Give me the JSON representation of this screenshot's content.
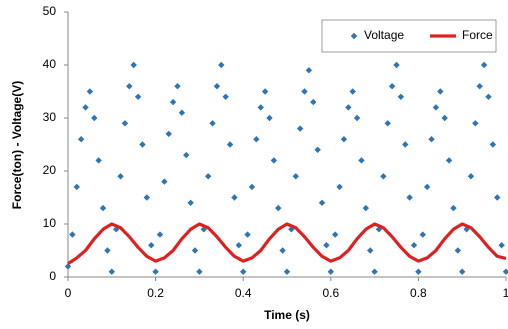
{
  "chart_data": {
    "type": "scatter",
    "xlabel": "Time (s)",
    "ylabel": "Force(ton) - Voltage(V)",
    "xlim": [
      0,
      1
    ],
    "xticks": [
      0,
      0.2,
      0.4,
      0.6,
      0.8,
      1
    ],
    "ylim": [
      0,
      50
    ],
    "yticks": [
      0,
      10,
      20,
      30,
      40,
      50
    ],
    "grid": false,
    "legend": "upper right",
    "series": [
      {
        "name": "Voltage",
        "color": "#2e75b6",
        "marker": "diamond",
        "x": [
          0,
          0.01,
          0.02,
          0.03,
          0.04,
          0.05,
          0.06,
          0.07,
          0.08,
          0.09,
          0.1,
          0.11,
          0.12,
          0.13,
          0.14,
          0.15,
          0.16,
          0.17,
          0.18,
          0.19,
          0.2,
          0.21,
          0.22,
          0.23,
          0.24,
          0.25,
          0.26,
          0.27,
          0.28,
          0.29,
          0.3,
          0.31,
          0.32,
          0.33,
          0.34,
          0.35,
          0.36,
          0.37,
          0.38,
          0.39,
          0.4,
          0.41,
          0.42,
          0.43,
          0.44,
          0.45,
          0.46,
          0.47,
          0.48,
          0.49,
          0.5,
          0.51,
          0.52,
          0.53,
          0.54,
          0.55,
          0.56,
          0.57,
          0.58,
          0.59,
          0.6,
          0.61,
          0.62,
          0.63,
          0.64,
          0.65,
          0.66,
          0.67,
          0.68,
          0.69,
          0.7,
          0.71,
          0.72,
          0.73,
          0.74,
          0.75,
          0.76,
          0.77,
          0.78,
          0.79,
          0.8,
          0.81,
          0.82,
          0.83,
          0.84,
          0.85,
          0.86,
          0.87,
          0.88,
          0.89,
          0.9,
          0.91,
          0.92,
          0.93,
          0.94,
          0.95,
          0.96,
          0.97,
          0.98,
          0.99,
          1
        ],
        "values": [
          2,
          8,
          17,
          26,
          32,
          35,
          30,
          22,
          13,
          5,
          1,
          9,
          19,
          29,
          36,
          40,
          34,
          25,
          15,
          6,
          1,
          8,
          18,
          27,
          33,
          36,
          31,
          23,
          14,
          5,
          1,
          9,
          19,
          29,
          36,
          40,
          34,
          25,
          15,
          6,
          1,
          8,
          17,
          26,
          32,
          35,
          30,
          22,
          13,
          5,
          1,
          9,
          19,
          28,
          35,
          39,
          33,
          24,
          14,
          6,
          1,
          8,
          17,
          26,
          32,
          35,
          30,
          22,
          13,
          5,
          1,
          9,
          19,
          29,
          36,
          40,
          34,
          25,
          15,
          6,
          1,
          8,
          17,
          26,
          32,
          35,
          30,
          22,
          13,
          5,
          1,
          9,
          19,
          29,
          36,
          40,
          34,
          25,
          15,
          6,
          1
        ]
      },
      {
        "name": "Force",
        "color": "#e02020",
        "marker": "line",
        "x": [
          0,
          0.02,
          0.04,
          0.06,
          0.08,
          0.1,
          0.12,
          0.14,
          0.16,
          0.18,
          0.2,
          0.22,
          0.24,
          0.26,
          0.28,
          0.3,
          0.32,
          0.34,
          0.36,
          0.38,
          0.4,
          0.42,
          0.44,
          0.46,
          0.48,
          0.5,
          0.52,
          0.54,
          0.56,
          0.58,
          0.6,
          0.62,
          0.64,
          0.66,
          0.68,
          0.7,
          0.72,
          0.74,
          0.76,
          0.78,
          0.8,
          0.82,
          0.84,
          0.86,
          0.88,
          0.9,
          0.92,
          0.94,
          0.96,
          0.98,
          1
        ],
        "values": [
          2.5,
          3.6,
          5,
          7.2,
          9,
          10,
          9.3,
          7.6,
          5.6,
          3.9,
          3,
          3.6,
          5,
          7.2,
          9,
          10,
          9.3,
          7.6,
          5.6,
          3.9,
          3,
          3.6,
          5,
          7.2,
          9,
          10,
          9.3,
          7.6,
          5.6,
          3.9,
          3,
          3.6,
          5,
          7.2,
          9,
          10,
          9.3,
          7.6,
          5.6,
          3.9,
          3,
          3.6,
          5,
          7.2,
          9,
          10,
          9.3,
          7.6,
          5.6,
          3.9,
          3.5
        ]
      }
    ]
  }
}
